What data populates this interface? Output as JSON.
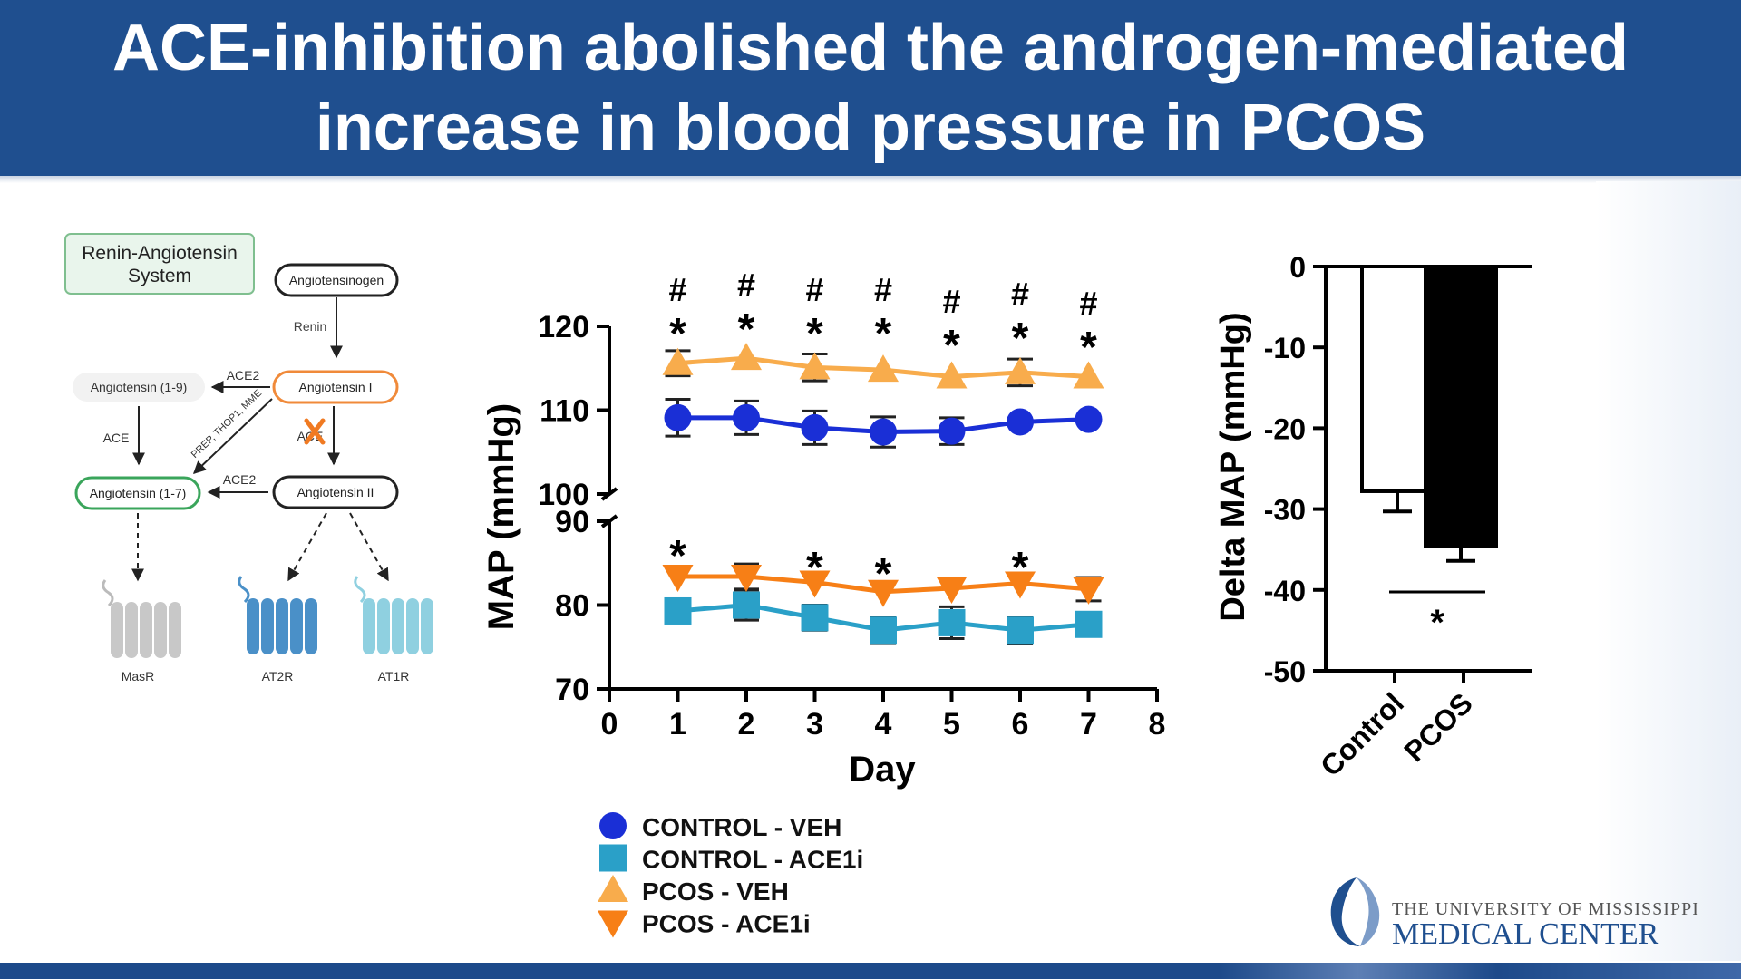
{
  "title": {
    "line1": "ACE-inhibition abolished the androgen-mediated",
    "line2": "increase in blood pressure in PCOS"
  },
  "diagram": {
    "system_label_1": "Renin-Angiotensin",
    "system_label_2": "System",
    "nodes": {
      "angiotensinogen": "Angiotensinogen",
      "angiotensin_1": "Angiotensin I",
      "angiotensin_2": "Angiotensin II",
      "angiotensin_1_9": "Angiotensin (1-9)",
      "angiotensin_1_7": "Angiotensin (1-7)"
    },
    "enzymes": {
      "renin": "Renin",
      "ace2_top": "ACE2",
      "ace_left": "ACE",
      "ace_blocked": "ACE",
      "prep": "PREP, THOP1, MME",
      "ace2_bottom": "ACE2"
    },
    "receptors": {
      "masr": "MasR",
      "at2r": "AT2R",
      "at1r": "AT1R"
    },
    "colors": {
      "angiotensin_1_border": "#f08a3a",
      "angiotensin_1_7_border": "#3aa55b",
      "blocked_x": "#f07a22",
      "masr": "#c8c8c8",
      "at2r": "#4a90c8",
      "at1r": "#8fd0e0"
    }
  },
  "line_chart": {
    "ylabel": "MAP (mmHg)",
    "xlabel": "Day"
  },
  "bar_chart": {
    "ylabel": "Delta MAP (mmHg)",
    "significance": "*"
  },
  "legend": [
    {
      "label": "CONTROL - VEH",
      "marker": "circle",
      "color": "#1a2fd6"
    },
    {
      "label": "CONTROL - ACE1i",
      "marker": "square",
      "color": "#2aa0c8"
    },
    {
      "label": "PCOS - VEH",
      "marker": "triangle-up",
      "color": "#f8ac4c"
    },
    {
      "label": "PCOS - ACE1i",
      "marker": "triangle-down",
      "color": "#f77f16"
    }
  ],
  "logo": {
    "line1": "THE UNIVERSITY OF MISSISSIPPI",
    "line2": "MEDICAL CENTER"
  },
  "chart_data": [
    {
      "type": "line",
      "x": [
        1,
        2,
        3,
        4,
        5,
        6,
        7
      ],
      "xlabel": "Day",
      "ylabel": "MAP (mmHg)",
      "xlim": [
        0,
        8
      ],
      "xticks": [
        "0",
        "1",
        "2",
        "3",
        "4",
        "5",
        "6",
        "7",
        "8"
      ],
      "y_segments": [
        {
          "range": [
            70,
            90
          ],
          "ticks": [
            "70",
            "80",
            "90"
          ]
        },
        {
          "range": [
            100,
            120
          ],
          "ticks": [
            "100",
            "110",
            "120"
          ]
        }
      ],
      "series": [
        {
          "name": "CONTROL - VEH",
          "marker": "circle",
          "color": "#1a2fd6",
          "values": [
            109.1,
            109.1,
            107.9,
            107.4,
            107.5,
            108.6,
            108.9
          ],
          "error": [
            2.2,
            2.0,
            2.0,
            1.8,
            1.6,
            0,
            0
          ]
        },
        {
          "name": "CONTROL - ACE1i",
          "marker": "square",
          "color": "#2aa0c8",
          "values": [
            79.3,
            80.0,
            78.5,
            77.0,
            77.9,
            77.0,
            77.7
          ],
          "error": [
            0,
            1.8,
            1.5,
            1.5,
            1.9,
            1.6,
            1.4
          ]
        },
        {
          "name": "PCOS - VEH",
          "marker": "triangle-up",
          "color": "#f8ac4c",
          "values": [
            115.6,
            116.2,
            115.1,
            114.8,
            114.0,
            114.5,
            114.0
          ],
          "error": [
            1.5,
            0,
            1.6,
            0,
            0,
            1.6,
            0
          ]
        },
        {
          "name": "PCOS - ACE1i",
          "marker": "triangle-down",
          "color": "#f77f16",
          "values": [
            83.4,
            83.4,
            82.7,
            81.6,
            82.0,
            82.6,
            81.9
          ],
          "error": [
            0,
            1.5,
            0,
            0,
            0,
            0,
            1.4
          ]
        }
      ],
      "annotations_upper": [
        {
          "x": 1,
          "text": "#"
        },
        {
          "x": 1,
          "text": "*"
        },
        {
          "x": 2,
          "text": "#"
        },
        {
          "x": 2,
          "text": "*"
        },
        {
          "x": 3,
          "text": "#"
        },
        {
          "x": 3,
          "text": "*"
        },
        {
          "x": 4,
          "text": "#"
        },
        {
          "x": 4,
          "text": "*"
        },
        {
          "x": 5,
          "text": "#"
        },
        {
          "x": 5,
          "text": "*"
        },
        {
          "x": 6,
          "text": "#"
        },
        {
          "x": 6,
          "text": "*"
        },
        {
          "x": 7,
          "text": "#"
        },
        {
          "x": 7,
          "text": "*"
        }
      ],
      "annotations_lower": [
        {
          "x": 1,
          "text": "*"
        },
        {
          "x": 3,
          "text": "*"
        },
        {
          "x": 4,
          "text": "*"
        },
        {
          "x": 6,
          "text": "*"
        }
      ]
    },
    {
      "type": "bar",
      "categories": [
        "Control",
        "PCOS"
      ],
      "values": [
        -27.8,
        -34.6
      ],
      "error": [
        2.5,
        1.8
      ],
      "colors": [
        "#ffffff",
        "#000000"
      ],
      "ylabel": "Delta MAP (mmHg)",
      "ylim": [
        -50,
        0
      ],
      "yticks": [
        "0",
        "-10",
        "-20",
        "-30",
        "-40",
        "-50"
      ],
      "significance": "*"
    }
  ]
}
